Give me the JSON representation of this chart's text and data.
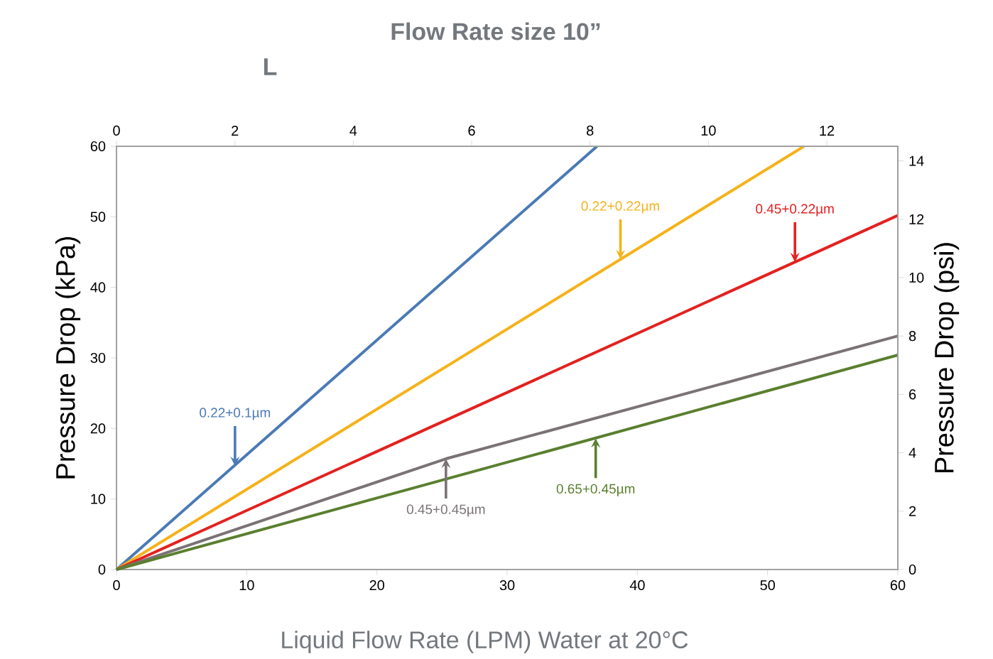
{
  "chart_data": {
    "type": "line",
    "title": "Flow Rate size 10”",
    "subtitle": "L",
    "xlabel": "Liquid Flow Rate (LPM) Water at 20°C",
    "ylabel": "Pressure Drop (kPa)",
    "y2label": "Pressure Drop (psi)",
    "xlim": [
      0,
      60
    ],
    "xticks": [
      0,
      10,
      20,
      30,
      40,
      50,
      60
    ],
    "ylim": [
      0,
      60
    ],
    "yticks": [
      0,
      10,
      20,
      30,
      40,
      50,
      60
    ],
    "x2lim": [
      0,
      13.2
    ],
    "x2ticks": [
      0,
      2,
      4,
      6,
      8,
      10,
      12
    ],
    "y2lim": [
      0,
      14.5
    ],
    "y2ticks": [
      0,
      2,
      4,
      6,
      8,
      10,
      12,
      14
    ],
    "series": [
      {
        "color": "#4a7ab5",
        "x": [
          0,
          36.9
        ],
        "values": [
          0,
          60
        ]
      },
      {
        "color": "#f5b21b",
        "x": [
          0,
          52.8
        ],
        "values": [
          0,
          60
        ]
      },
      {
        "color": "#e3211f",
        "x": [
          0,
          60
        ],
        "values": [
          0,
          50.2
        ]
      },
      {
        "color": "#7a7274",
        "x": [
          0,
          10,
          25.3,
          60
        ],
        "values": [
          0,
          6.2,
          15.7,
          33.1
        ]
      },
      {
        "color": "#5a7f2e",
        "x": [
          0,
          60
        ],
        "values": [
          0,
          30.4
        ]
      }
    ],
    "annotations": [
      {
        "text": "0.22+0.1µm",
        "x": 9.1,
        "y": 14.7
      },
      {
        "text": "0.22+0.22µm",
        "x": 38.7,
        "y": 44.0
      },
      {
        "text": "0.45+0.22µm",
        "x": 52.1,
        "y": 43.6
      },
      {
        "text": "0.45+0.45µm",
        "x": 25.3,
        "y": 15.7
      },
      {
        "text": "0.65+0.45µm",
        "x": 36.8,
        "y": 18.6
      }
    ]
  }
}
